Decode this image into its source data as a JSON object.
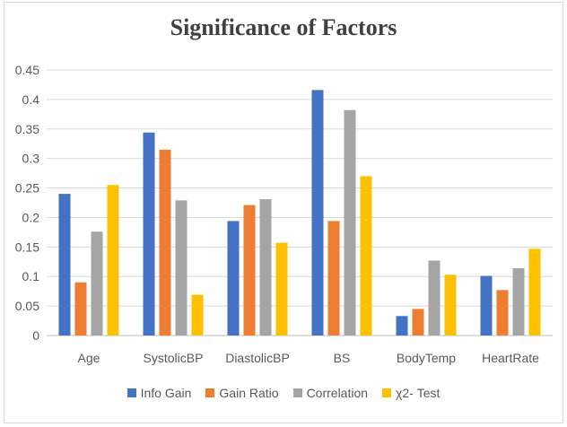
{
  "chart_data": {
    "type": "bar",
    "title": "Significance of Factors",
    "xlabel": "",
    "ylabel": "",
    "ylim": [
      0,
      0.45
    ],
    "yticks": [
      "0",
      "0.05",
      "0.1",
      "0.15",
      "0.2",
      "0.25",
      "0.3",
      "0.35",
      "0.4",
      "0.45"
    ],
    "grid": true,
    "legend_position": "bottom",
    "categories": [
      "Age",
      "SystolicBP",
      "DiastolicBP",
      "BS",
      "BodyTemp",
      "HeartRate"
    ],
    "series": [
      {
        "name": "Info Gain",
        "color": "#4472c4",
        "values": [
          0.24,
          0.344,
          0.194,
          0.416,
          0.033,
          0.101
        ]
      },
      {
        "name": "Gain Ratio",
        "color": "#ed7d31",
        "values": [
          0.09,
          0.315,
          0.221,
          0.194,
          0.045,
          0.077
        ]
      },
      {
        "name": "Correlation",
        "color": "#a5a5a5",
        "values": [
          0.176,
          0.229,
          0.231,
          0.382,
          0.127,
          0.114
        ]
      },
      {
        "name": "χ2- Test",
        "color": "#ffc000",
        "values": [
          0.255,
          0.069,
          0.157,
          0.27,
          0.103,
          0.147
        ]
      }
    ]
  }
}
